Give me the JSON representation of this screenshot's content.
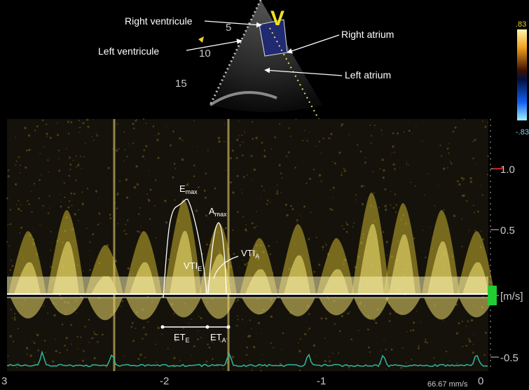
{
  "sector": {
    "view_label": "V",
    "depth_labels": [
      "5",
      "10",
      "15"
    ],
    "structures": [
      "Right ventricule",
      "Left ventricule",
      "Right atrium",
      "Left atrium"
    ]
  },
  "color_scale": {
    "top": ".83",
    "bottom": "-.83"
  },
  "doppler": {
    "velocity_labels": [
      "1.0",
      "0.5",
      "[m/s]",
      "-0.5"
    ],
    "time_labels": [
      "3",
      "-2",
      "-1",
      "0"
    ],
    "sweep_speed": "66.67 mm/s",
    "annotations": [
      {
        "main": "E",
        "sub": "max"
      },
      {
        "main": "A",
        "sub": "max"
      },
      {
        "main": "VTI",
        "sub": "E"
      },
      {
        "main": "VTI",
        "sub": "A"
      },
      {
        "main": "ET",
        "sub": "E"
      },
      {
        "main": "ET",
        "sub": "A"
      }
    ]
  }
}
